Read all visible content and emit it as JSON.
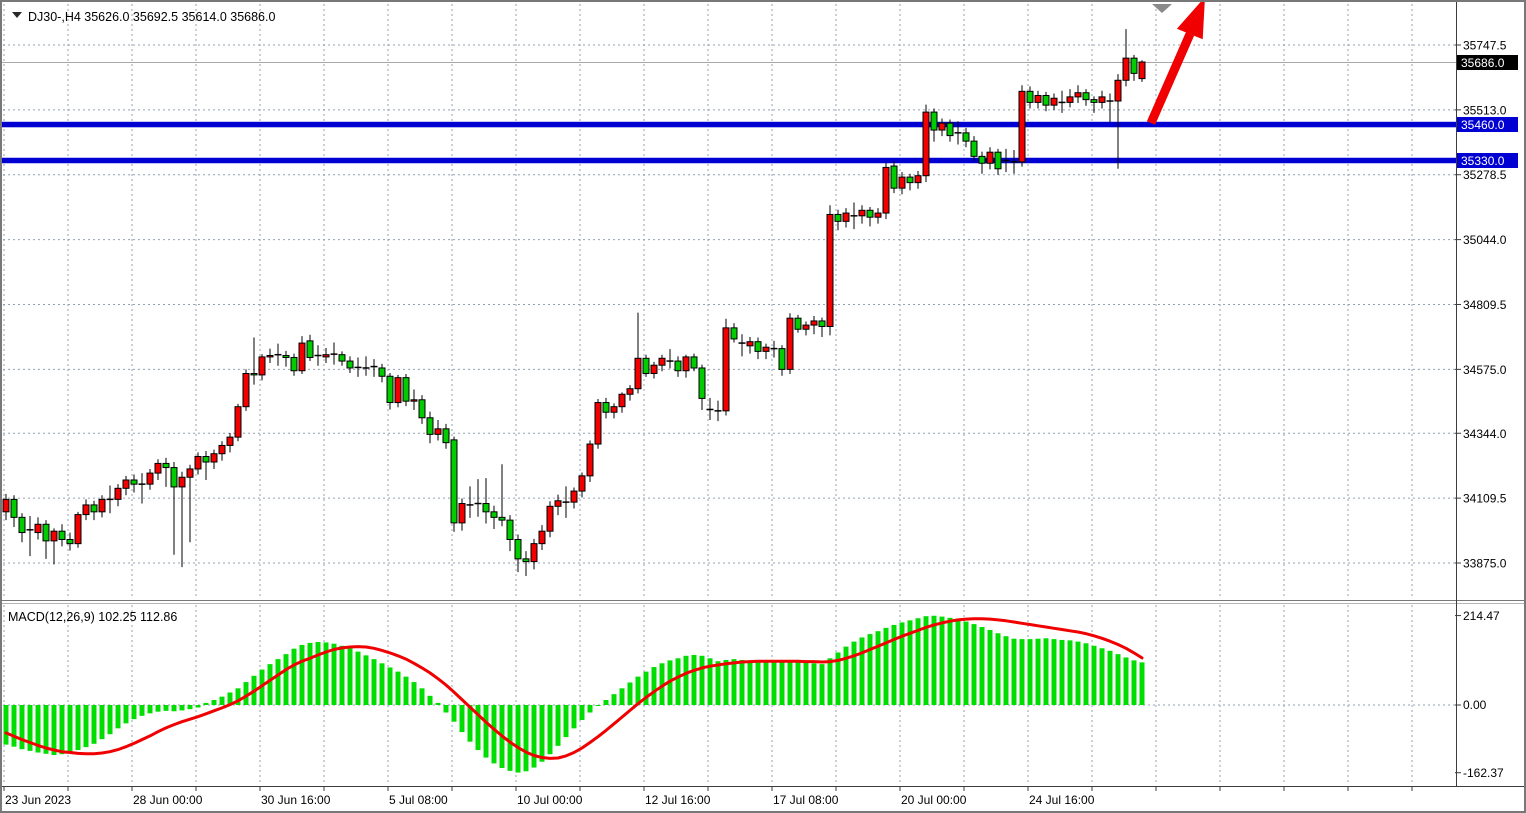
{
  "header": {
    "symbol_period": "DJ30-,H4",
    "open": "35626.0",
    "high": "35692.5",
    "low": "35614.0",
    "close": "35686.0",
    "display": "DJ30-,H4  35626.0 35692.5 35614.0 35686.0"
  },
  "price_axis": {
    "ticks": [
      "35747.5",
      "35513.0",
      "35278.5",
      "35044.0",
      "34809.5",
      "34575.0",
      "34344.0",
      "34109.5",
      "33875.0"
    ],
    "tick_values": [
      35747.5,
      35513.0,
      35278.5,
      35044.0,
      34809.5,
      34575.0,
      34344.0,
      34109.5,
      33875.0
    ],
    "current": {
      "label": "35686.0",
      "value": 35686.0
    },
    "levels": [
      {
        "label": "35460.0",
        "value": 35460.0
      },
      {
        "label": "35330.0",
        "value": 35330.0
      }
    ]
  },
  "time_axis": {
    "labels": [
      "23 Jun 2023",
      "28 Jun 00:00",
      "30 Jun 16:00",
      "5 Jul 08:00",
      "10 Jul 00:00",
      "12 Jul 16:00",
      "17 Jul 08:00",
      "20 Jul 00:00",
      "24 Jul 16:00"
    ],
    "label_candle_indices": [
      0,
      16,
      32,
      48,
      64,
      80,
      96,
      112,
      128
    ]
  },
  "macd_panel": {
    "label": "MACD(12,26,9)",
    "main_value": "102.25",
    "signal_value": "112.86",
    "display": "MACD(12,26,9) 102.25 112.86",
    "axis": [
      "214.47",
      "0.00",
      "-162.37"
    ],
    "axis_values": [
      214.47,
      0.0,
      -162.37
    ]
  },
  "colors": {
    "bull_candle": "#f20000",
    "bear_candle": "#00cc00",
    "candle_border": "#000000",
    "macd_hist": "#00dd00",
    "macd_signal": "#f00000",
    "level_line": "#0000d2",
    "badge_current_bg": "#000000",
    "badge_level_bg": "#0000d2",
    "badge_text": "#ffffff",
    "grid": "#94a1b2",
    "frame": "#787878",
    "axis_line": "#3c3c3c",
    "current_price_line": "#a8a8a8",
    "arrow": "#f00000",
    "shift_marker": "#8a8a8a",
    "background": "#ffffff"
  },
  "chart_data": {
    "type": "candlestick",
    "symbol": "DJ30-",
    "timeframe": "H4",
    "title": "DJ30-,H4 35626.0 35692.5 35614.0 35686.0",
    "y_axis_ticks": [
      35747.5,
      35513.0,
      35278.5,
      35044.0,
      34809.5,
      34575.0,
      34344.0,
      34109.5,
      33875.0
    ],
    "x_tick_labels": [
      "23 Jun 2023",
      "28 Jun 00:00",
      "30 Jun 16:00",
      "5 Jul 08:00",
      "10 Jul 00:00",
      "12 Jul 16:00",
      "17 Jul 08:00",
      "20 Jul 00:00",
      "24 Jul 16:00"
    ],
    "horizontal_levels": [
      35460.0,
      35330.0
    ],
    "current_price": 35686.0,
    "annotations": [
      {
        "type": "arrow",
        "direction": "up",
        "color": "#f00000"
      }
    ],
    "candles": [
      [
        34060,
        34125,
        34030,
        34105
      ],
      [
        34105,
        34120,
        34005,
        34040
      ],
      [
        34040,
        34055,
        33950,
        33985
      ],
      [
        33995,
        34045,
        33900,
        33995
      ],
      [
        33985,
        34040,
        33960,
        34015
      ],
      [
        34015,
        34030,
        33890,
        33955
      ],
      [
        33955,
        34000,
        33870,
        33990
      ],
      [
        33990,
        34015,
        33935,
        33960
      ],
      [
        33960,
        33985,
        33920,
        33945
      ],
      [
        33945,
        34060,
        33930,
        34050
      ],
      [
        34050,
        34105,
        34030,
        34085
      ],
      [
        34085,
        34100,
        34030,
        34060
      ],
      [
        34060,
        34120,
        34040,
        34105
      ],
      [
        34105,
        34155,
        34055,
        34105
      ],
      [
        34105,
        34160,
        34080,
        34145
      ],
      [
        34145,
        34190,
        34120,
        34175
      ],
      [
        34175,
        34195,
        34130,
        34160
      ],
      [
        34160,
        34200,
        34090,
        34160
      ],
      [
        34160,
        34215,
        34140,
        34200
      ],
      [
        34200,
        34250,
        34175,
        34235
      ],
      [
        34235,
        34255,
        34150,
        34220
      ],
      [
        34220,
        34240,
        33905,
        34150
      ],
      [
        34150,
        34205,
        33860,
        34185
      ],
      [
        34185,
        34230,
        33950,
        34215
      ],
      [
        34215,
        34275,
        34195,
        34260
      ],
      [
        34260,
        34280,
        34175,
        34240
      ],
      [
        34240,
        34285,
        34215,
        34270
      ],
      [
        34270,
        34315,
        34245,
        34300
      ],
      [
        34300,
        34345,
        34275,
        34330
      ],
      [
        34330,
        34450,
        34315,
        34440
      ],
      [
        34440,
        34575,
        34425,
        34560
      ],
      [
        34560,
        34690,
        34520,
        34555
      ],
      [
        34555,
        34630,
        34535,
        34620
      ],
      [
        34620,
        34650,
        34598,
        34625
      ],
      [
        34628,
        34668,
        34588,
        34628
      ],
      [
        34625,
        34642,
        34585,
        34618
      ],
      [
        34618,
        34632,
        34552,
        34570
      ],
      [
        34570,
        34695,
        34558,
        34670
      ],
      [
        34678,
        34700,
        34605,
        34618
      ],
      [
        34625,
        34662,
        34588,
        34625
      ],
      [
        34620,
        34652,
        34598,
        34628
      ],
      [
        34630,
        34672,
        34592,
        34630
      ],
      [
        34628,
        34640,
        34588,
        34605
      ],
      [
        34605,
        34622,
        34562,
        34580
      ],
      [
        34582,
        34618,
        34548,
        34582
      ],
      [
        34580,
        34622,
        34552,
        34580
      ],
      [
        34585,
        34612,
        34548,
        34585
      ],
      [
        34580,
        34595,
        34528,
        34550
      ],
      [
        34550,
        34562,
        34430,
        34455
      ],
      [
        34455,
        34555,
        34438,
        34545
      ],
      [
        34545,
        34558,
        34442,
        34460
      ],
      [
        34460,
        34502,
        34428,
        34465
      ],
      [
        34465,
        34482,
        34378,
        34400
      ],
      [
        34400,
        34422,
        34308,
        34340
      ],
      [
        34340,
        34392,
        34318,
        34360
      ],
      [
        34360,
        34378,
        34288,
        34310
      ],
      [
        34320,
        34332,
        33988,
        34020
      ],
      [
        34020,
        34108,
        33992,
        34090
      ],
      [
        34085,
        34152,
        34038,
        34085
      ],
      [
        34090,
        34178,
        34042,
        34090
      ],
      [
        34090,
        34182,
        34018,
        34060
      ],
      [
        34060,
        34082,
        33998,
        34040
      ],
      [
        34040,
        34232,
        34008,
        34030
      ],
      [
        34030,
        34048,
        33918,
        33960
      ],
      [
        33960,
        33978,
        33842,
        33890
      ],
      [
        33890,
        33918,
        33828,
        33880
      ],
      [
        33880,
        33962,
        33852,
        33945
      ],
      [
        33945,
        34012,
        33922,
        33990
      ],
      [
        33990,
        34098,
        33968,
        34080
      ],
      [
        34080,
        34122,
        34048,
        34100
      ],
      [
        34095,
        34152,
        34038,
        34095
      ],
      [
        34095,
        34148,
        34072,
        34135
      ],
      [
        34135,
        34202,
        34112,
        34190
      ],
      [
        34190,
        34318,
        34168,
        34305
      ],
      [
        34305,
        34468,
        34288,
        34455
      ],
      [
        34455,
        34472,
        34398,
        34420
      ],
      [
        34420,
        34452,
        34398,
        34440
      ],
      [
        34440,
        34492,
        34418,
        34485
      ],
      [
        34485,
        34518,
        34462,
        34505
      ],
      [
        34505,
        34780,
        34488,
        34615
      ],
      [
        34615,
        34628,
        34548,
        34560
      ],
      [
        34560,
        34602,
        34542,
        34590
      ],
      [
        34590,
        34628,
        34568,
        34615
      ],
      [
        34605,
        34648,
        34578,
        34605
      ],
      [
        34605,
        34622,
        34548,
        34570
      ],
      [
        34570,
        34628,
        34545,
        34620
      ],
      [
        34620,
        34632,
        34568,
        34580
      ],
      [
        34580,
        34592,
        34428,
        34470
      ],
      [
        34430,
        34472,
        34392,
        34430
      ],
      [
        34425,
        34462,
        34388,
        34425
      ],
      [
        34425,
        34758,
        34408,
        34725
      ],
      [
        34725,
        34742,
        34672,
        34685
      ],
      [
        34670,
        34702,
        34622,
        34670
      ],
      [
        34660,
        34692,
        34632,
        34675
      ],
      [
        34675,
        34690,
        34612,
        34640
      ],
      [
        34640,
        34668,
        34612,
        34655
      ],
      [
        34650,
        34678,
        34618,
        34650
      ],
      [
        34650,
        34662,
        34552,
        34575
      ],
      [
        34575,
        34778,
        34558,
        34760
      ],
      [
        34760,
        34772,
        34708,
        34720
      ],
      [
        34720,
        34748,
        34698,
        34735
      ],
      [
        34735,
        34768,
        34702,
        34750
      ],
      [
        34750,
        34762,
        34692,
        34730
      ],
      [
        34730,
        35168,
        34698,
        35135
      ],
      [
        35135,
        35152,
        35078,
        35110
      ],
      [
        35110,
        35158,
        35088,
        35140
      ],
      [
        35130,
        35178,
        35082,
        35130
      ],
      [
        35130,
        35168,
        35102,
        35150
      ],
      [
        35150,
        35162,
        35092,
        35125
      ],
      [
        35125,
        35158,
        35102,
        35140
      ],
      [
        35140,
        35322,
        35118,
        35305
      ],
      [
        35310,
        35328,
        35212,
        35230
      ],
      [
        35230,
        35288,
        35208,
        35270
      ],
      [
        35270,
        35282,
        35222,
        35250
      ],
      [
        35250,
        35292,
        35228,
        35275
      ],
      [
        35275,
        35532,
        35252,
        35505
      ],
      [
        35505,
        35518,
        35398,
        35440
      ],
      [
        35440,
        35482,
        35418,
        35465
      ],
      [
        35465,
        35478,
        35398,
        35420
      ],
      [
        35430,
        35472,
        35388,
        35430
      ],
      [
        35430,
        35448,
        35378,
        35400
      ],
      [
        35400,
        35418,
        35328,
        35345
      ],
      [
        35345,
        35362,
        35282,
        35320
      ],
      [
        35320,
        35378,
        35298,
        35360
      ],
      [
        35360,
        35372,
        35278,
        35300
      ],
      [
        35330,
        35372,
        35288,
        35330
      ],
      [
        35325,
        35368,
        35282,
        35325
      ],
      [
        35325,
        35602,
        35308,
        35580
      ],
      [
        35580,
        35598,
        35518,
        35540
      ],
      [
        35540,
        35582,
        35518,
        35565
      ],
      [
        35565,
        35578,
        35508,
        35530
      ],
      [
        35530,
        35572,
        35512,
        35555
      ],
      [
        35540,
        35582,
        35502,
        35540
      ],
      [
        35540,
        35588,
        35522,
        35560
      ],
      [
        35560,
        35602,
        35538,
        35575
      ],
      [
        35575,
        35588,
        35528,
        35550
      ],
      [
        35550,
        35562,
        35502,
        35540
      ],
      [
        35540,
        35582,
        35518,
        35560
      ],
      [
        35545,
        35572,
        35468,
        35545
      ],
      [
        35545,
        35642,
        35300,
        35620
      ],
      [
        35620,
        35805,
        35598,
        35700
      ],
      [
        35700,
        35712,
        35618,
        35645
      ],
      [
        35626,
        35692.5,
        35614,
        35686
      ]
    ],
    "macd": {
      "fast": 12,
      "slow": 26,
      "signal_period": 9,
      "y_axis": [
        214.47,
        0.0,
        -162.37
      ],
      "histogram": [
        -95,
        -100,
        -106,
        -110,
        -114,
        -117,
        -120,
        -118,
        -113,
        -108,
        -101,
        -93,
        -82,
        -70,
        -56,
        -44,
        -34,
        -26,
        -20,
        -16,
        -14,
        -15,
        -13,
        -10,
        -6,
        5,
        12,
        20,
        30,
        40,
        55,
        70,
        85,
        98,
        110,
        122,
        135,
        144,
        149,
        151,
        150,
        147,
        142,
        136,
        128,
        119,
        110,
        100,
        90,
        80,
        68,
        55,
        40,
        22,
        5,
        -18,
        -40,
        -65,
        -88,
        -108,
        -126,
        -140,
        -151,
        -158,
        -162,
        -159,
        -150,
        -136,
        -118,
        -98,
        -77,
        -56,
        -36,
        -18,
        -2,
        12,
        26,
        40,
        54,
        68,
        80,
        91,
        100,
        107,
        112,
        118,
        120,
        118,
        112,
        105,
        108,
        110,
        108,
        106,
        105,
        104,
        103,
        102,
        104,
        103,
        101,
        100,
        98,
        112,
        126,
        140,
        152,
        162,
        170,
        177,
        185,
        192,
        198,
        203,
        208,
        213,
        214,
        212,
        209,
        205,
        200,
        194,
        187,
        180,
        172,
        165,
        159,
        158,
        158,
        159,
        160,
        158,
        156,
        155,
        152,
        148,
        142,
        136,
        130,
        122,
        114,
        107,
        102.25
      ],
      "signal": [
        -67,
        -75,
        -83,
        -90,
        -97,
        -103,
        -108,
        -112,
        -114,
        -116,
        -117,
        -117,
        -115,
        -112,
        -107,
        -100,
        -92,
        -83,
        -74,
        -64,
        -55,
        -47,
        -40,
        -34,
        -28,
        -21,
        -14,
        -7,
        1,
        10,
        21,
        33,
        46,
        59,
        72,
        85,
        96,
        105,
        112,
        120,
        127,
        133,
        137,
        139,
        140,
        139,
        136,
        131,
        125,
        118,
        110,
        100,
        89,
        77,
        63,
        48,
        31,
        13,
        -5,
        -23,
        -41,
        -58,
        -74,
        -89,
        -102,
        -113,
        -121,
        -126,
        -128,
        -127,
        -122,
        -114,
        -103,
        -90,
        -76,
        -61,
        -45,
        -29,
        -13,
        3,
        18,
        32,
        45,
        57,
        67,
        76,
        83,
        89,
        93,
        96,
        99,
        101,
        103,
        104,
        105,
        105,
        105,
        105,
        105,
        105,
        104,
        104,
        103,
        104,
        107,
        112,
        118,
        125,
        133,
        141,
        149,
        157,
        165,
        172,
        179,
        186,
        192,
        197,
        201,
        204,
        206,
        207,
        207,
        206,
        204,
        202,
        199,
        196,
        193,
        190,
        187,
        184,
        181,
        178,
        175,
        171,
        166,
        160,
        153,
        145,
        136,
        125,
        112.86
      ]
    }
  }
}
